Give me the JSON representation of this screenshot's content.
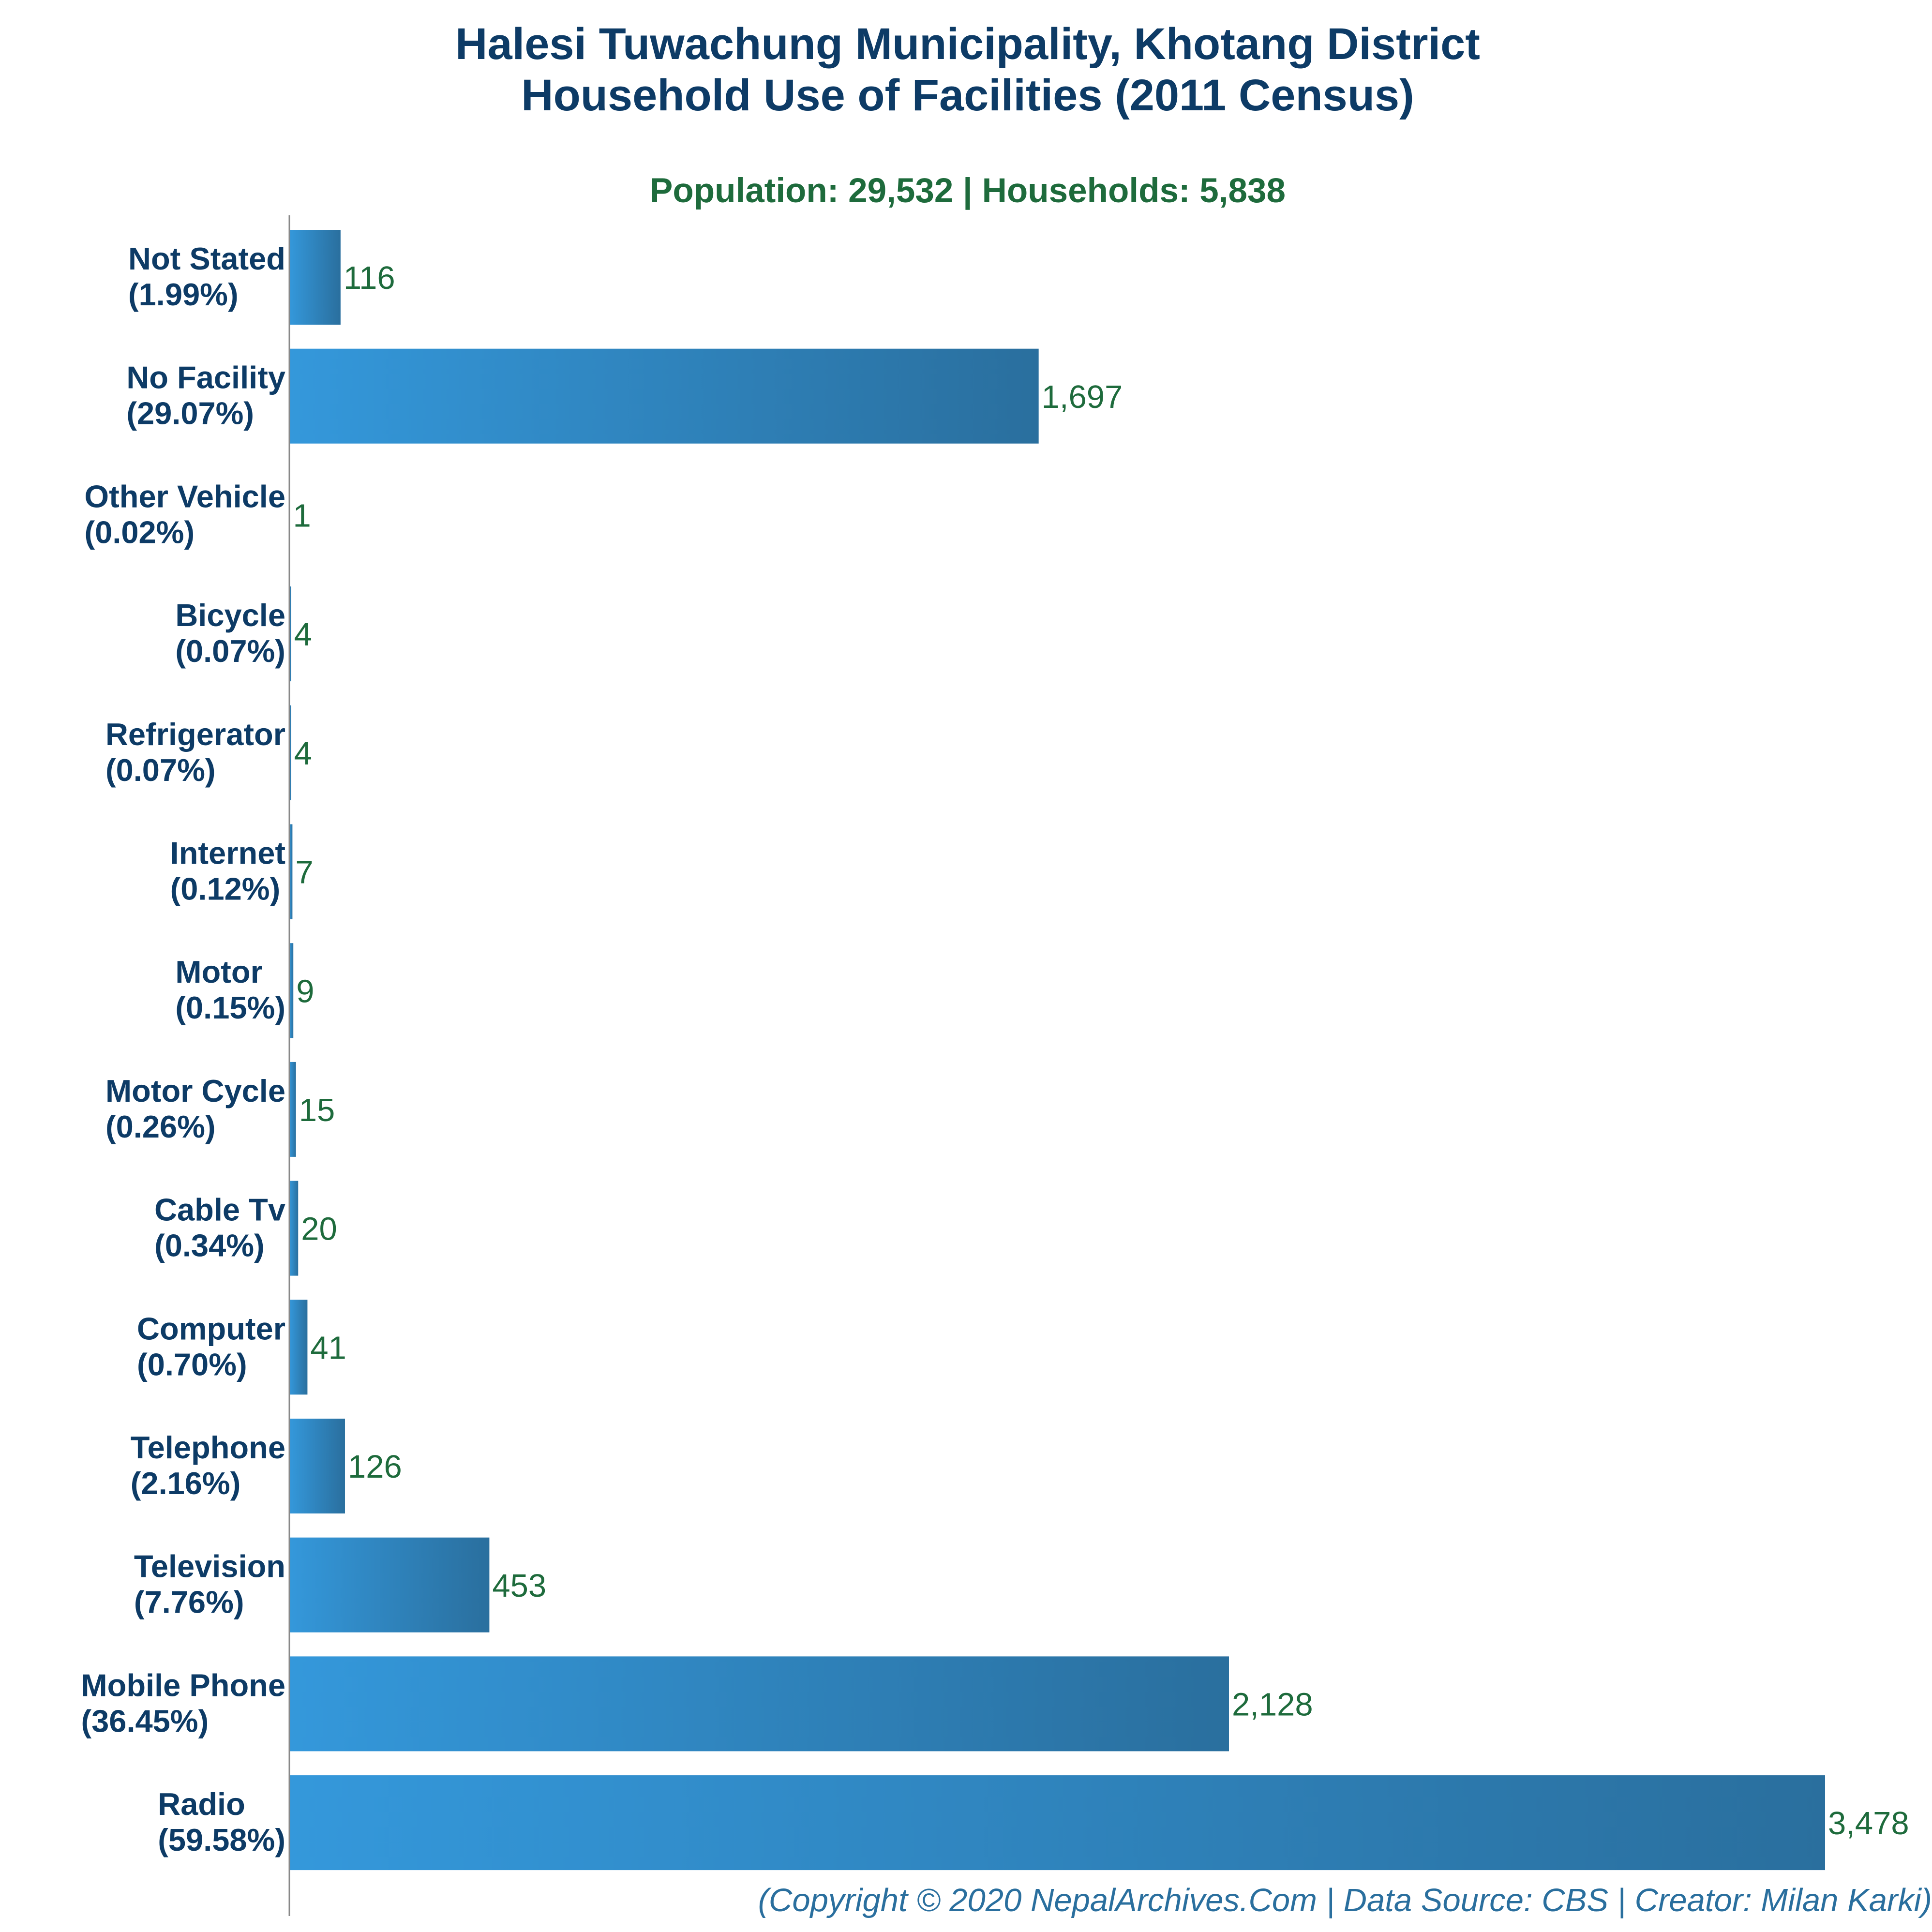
{
  "colors": {
    "title": "#0d3b66",
    "subtitle": "#1e6b3c",
    "value_label": "#1e6b3c",
    "category_label": "#0d3b66",
    "bar_light": "#3498db",
    "bar_dark": "#2a6f9e",
    "axis": "#888888",
    "footer": "#2a6f9e"
  },
  "chart_data": {
    "type": "bar",
    "orientation": "horizontal",
    "title_lines": [
      "Halesi Tuwachung Municipality, Khotang District",
      "Household Use of Facilities (2011 Census)"
    ],
    "subtitle": "Population: 29,532 | Households: 5,838",
    "categories": [
      {
        "name": "Not Stated",
        "percent": "(1.99%)"
      },
      {
        "name": "No Facility",
        "percent": "(29.07%)"
      },
      {
        "name": "Other Vehicle",
        "percent": "(0.02%)"
      },
      {
        "name": "Bicycle",
        "percent": "(0.07%)"
      },
      {
        "name": "Refrigerator",
        "percent": "(0.07%)"
      },
      {
        "name": "Internet",
        "percent": "(0.12%)"
      },
      {
        "name": "Motor",
        "percent": "(0.15%)"
      },
      {
        "name": "Motor Cycle",
        "percent": "(0.26%)"
      },
      {
        "name": "Cable Tv",
        "percent": "(0.34%)"
      },
      {
        "name": "Computer",
        "percent": "(0.70%)"
      },
      {
        "name": "Telephone",
        "percent": "(2.16%)"
      },
      {
        "name": "Television",
        "percent": "(7.76%)"
      },
      {
        "name": "Mobile Phone",
        "percent": "(36.45%)"
      },
      {
        "name": "Radio",
        "percent": "(59.58%)"
      }
    ],
    "values": [
      116,
      1697,
      1,
      4,
      4,
      7,
      9,
      15,
      20,
      41,
      126,
      453,
      2128,
      3478
    ],
    "value_labels": [
      "116",
      "1,697",
      "1",
      "4",
      "4",
      "7",
      "9",
      "15",
      "20",
      "41",
      "126",
      "453",
      "2,128",
      "3,478"
    ],
    "xlim": [
      0,
      3478
    ],
    "grid": false,
    "legend": "none"
  },
  "footer": "(Copyright © 2020 NepalArchives.Com | Data Source: CBS | Creator: Milan Karki)"
}
